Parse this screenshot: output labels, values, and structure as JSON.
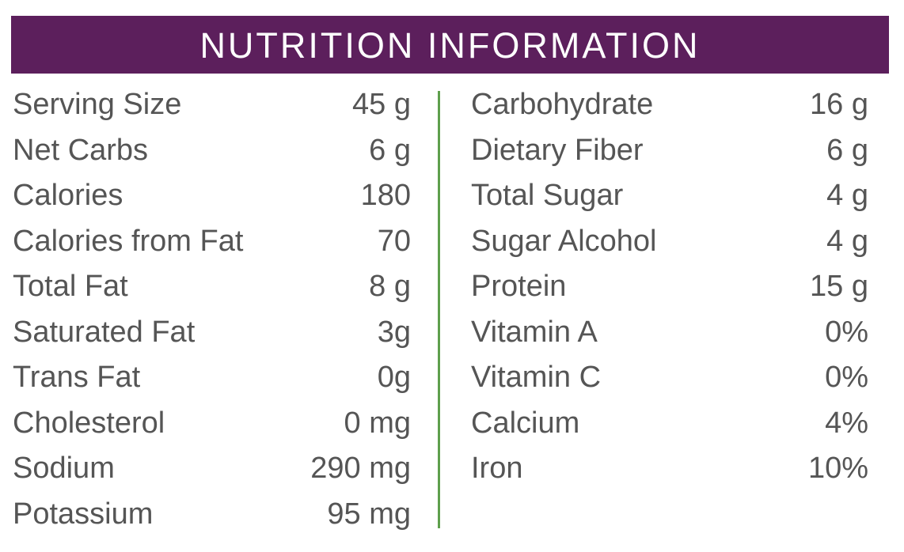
{
  "header": {
    "title": "NUTRITION INFORMATION"
  },
  "table": {
    "left": [
      {
        "label": "Serving Size",
        "value": "45 g"
      },
      {
        "label": "Net Carbs",
        "value": "6 g"
      },
      {
        "label": "Calories",
        "value": "180"
      },
      {
        "label": "Calories from Fat",
        "value": "70"
      },
      {
        "label": "Total Fat",
        "value": "8 g"
      },
      {
        "label": "Saturated Fat",
        "value": "3g"
      },
      {
        "label": "Trans Fat",
        "value": "0g"
      },
      {
        "label": "Cholesterol",
        "value": "0 mg"
      },
      {
        "label": "Sodium",
        "value": "290 mg"
      },
      {
        "label": "Potassium",
        "value": "95 mg"
      }
    ],
    "right": [
      {
        "label": "Carbohydrate",
        "value": "16 g"
      },
      {
        "label": "Dietary Fiber",
        "value": "6 g"
      },
      {
        "label": "Total Sugar",
        "value": "4 g"
      },
      {
        "label": "Sugar Alcohol",
        "value": "4 g"
      },
      {
        "label": "Protein",
        "value": "15 g"
      },
      {
        "label": "Vitamin A",
        "value": "0%"
      },
      {
        "label": "Vitamin C",
        "value": "0%"
      },
      {
        "label": "Calcium",
        "value": "4%"
      },
      {
        "label": "Iron",
        "value": "10%"
      }
    ]
  }
}
